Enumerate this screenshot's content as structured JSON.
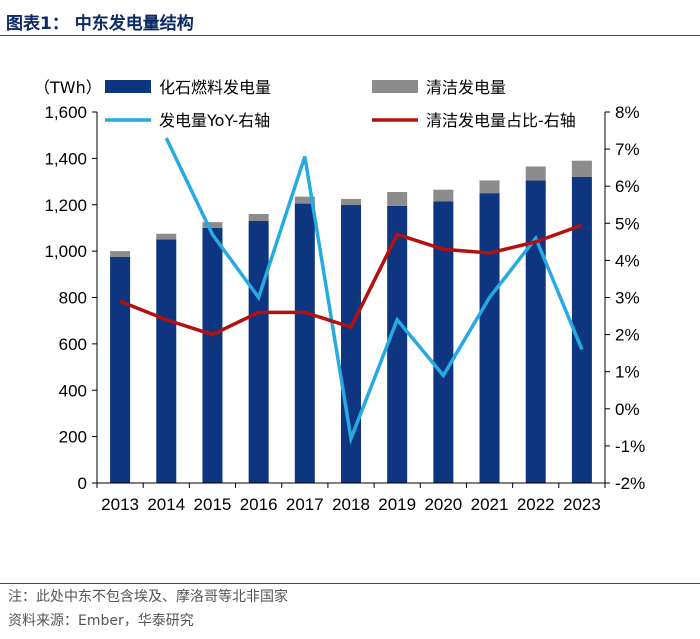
{
  "header": {
    "title": "图表1：  中东发电量结构"
  },
  "footer": {
    "note": "注：此处中东不包含埃及、摩洛哥等北非国家",
    "source": "资料来源：Ember，华泰研究"
  },
  "chart_data": {
    "type": "bar",
    "title": "",
    "unit_label": "（TWh）",
    "categories": [
      "2013",
      "2014",
      "2015",
      "2016",
      "2017",
      "2018",
      "2019",
      "2020",
      "2021",
      "2022",
      "2023"
    ],
    "series": [
      {
        "name": "化石燃料发电量",
        "kind": "stacked-bar",
        "axis": "left",
        "color": "#0d3580",
        "values": [
          975,
          1050,
          1100,
          1130,
          1205,
          1200,
          1195,
          1215,
          1250,
          1305,
          1320
        ]
      },
      {
        "name": "清洁发电量",
        "kind": "stacked-bar",
        "axis": "left",
        "color": "#8c8c8c",
        "values": [
          25,
          25,
          25,
          30,
          30,
          25,
          60,
          50,
          55,
          60,
          70
        ]
      },
      {
        "name": "发电量YoY-右轴",
        "kind": "line",
        "axis": "right",
        "color": "#27a9e1",
        "values": [
          null,
          7.3,
          4.7,
          3.0,
          6.8,
          -0.8,
          2.4,
          0.9,
          3.0,
          4.6,
          1.6
        ]
      },
      {
        "name": "清洁发电量占比-右轴",
        "kind": "line",
        "axis": "right",
        "color": "#b31010",
        "values": [
          2.9,
          2.4,
          2.0,
          2.6,
          2.6,
          2.2,
          4.7,
          4.3,
          4.2,
          4.5,
          4.95
        ]
      }
    ],
    "left_axis": {
      "ylim": [
        0,
        1600
      ],
      "ticks": [
        0,
        200,
        400,
        600,
        800,
        1000,
        1200,
        1400,
        1600
      ],
      "tick_labels": [
        "0",
        "200",
        "400",
        "600",
        "800",
        "1,000",
        "1,200",
        "1,400",
        "1,600"
      ]
    },
    "right_axis": {
      "ylim": [
        -2,
        8
      ],
      "ticks": [
        -2,
        -1,
        0,
        1,
        2,
        3,
        4,
        5,
        6,
        7,
        8
      ],
      "tick_labels": [
        "-2%",
        "-1%",
        "0%",
        "1%",
        "2%",
        "3%",
        "4%",
        "5%",
        "6%",
        "7%",
        "8%"
      ]
    },
    "grid": false,
    "legend_position": "top"
  }
}
